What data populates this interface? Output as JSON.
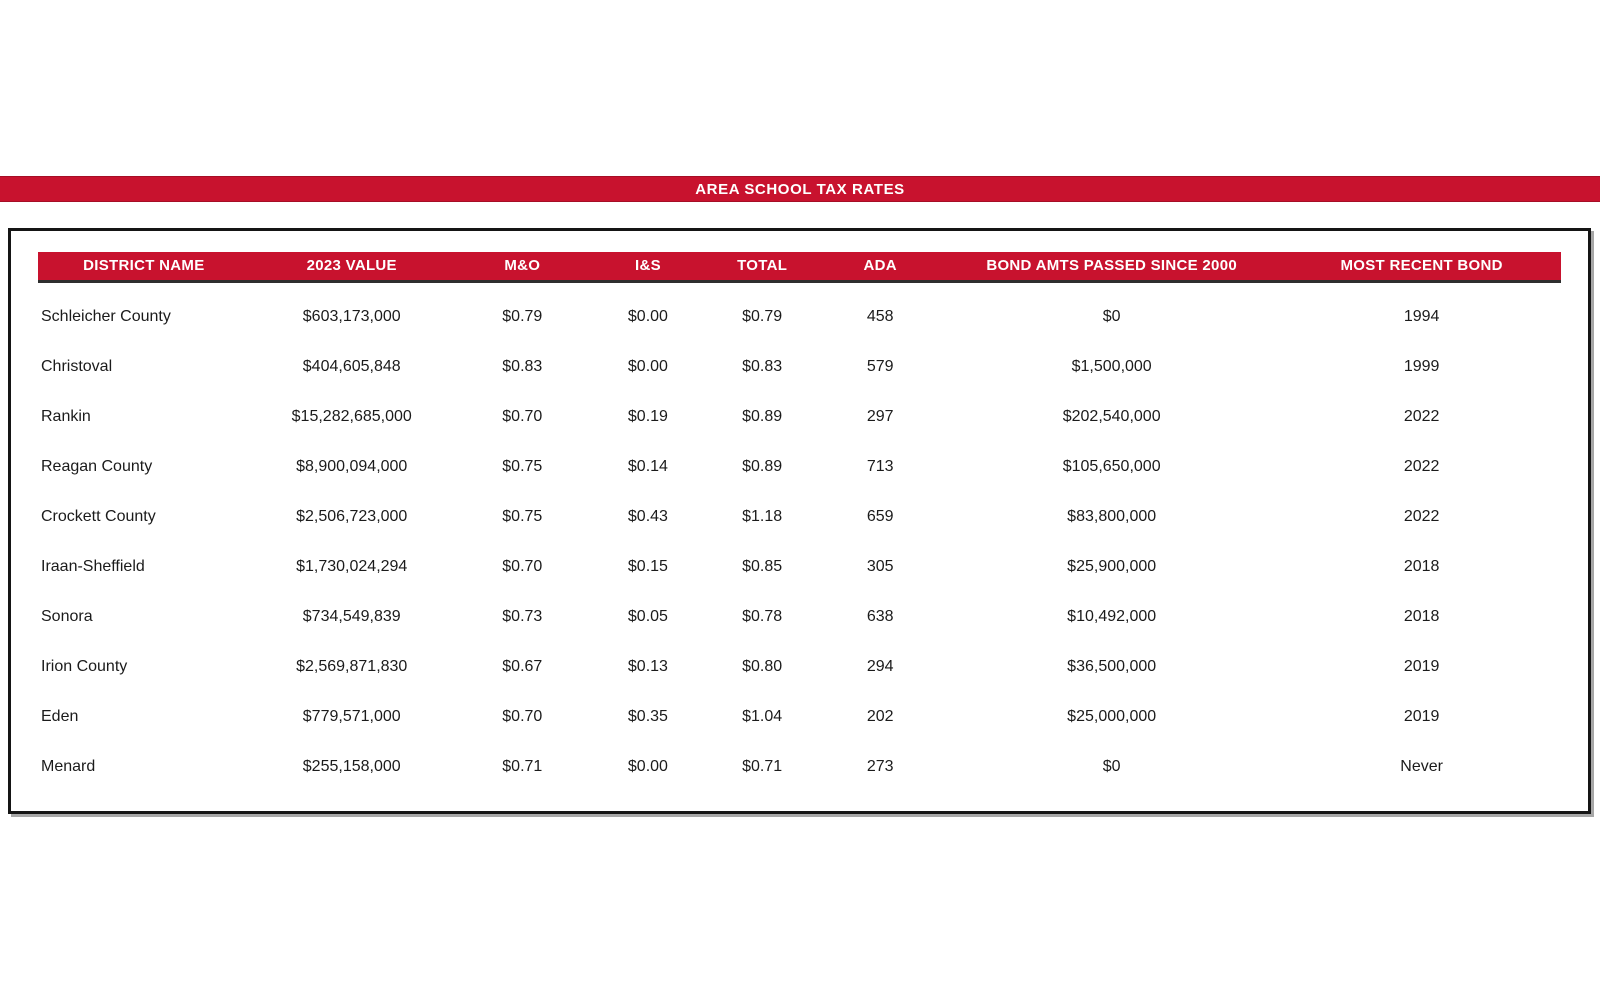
{
  "banner": {
    "title": "AREA SCHOOL TAX RATES"
  },
  "colors": {
    "accent_red": "#C8122E",
    "accent_red_dark": "#A50E26",
    "header_text": "#FFFFFF",
    "body_text": "#1B1B1B",
    "outer_border": "#151515"
  },
  "table": {
    "column_keys": [
      "district-name",
      "value-2023",
      "m-and-o",
      "i-and-s",
      "total",
      "ada",
      "bond-amts-since-2000",
      "most-recent-bond"
    ],
    "columns": [
      "DISTRICT NAME",
      "2023 VALUE",
      "M&O",
      "I&S",
      "TOTAL",
      "ADA",
      "BOND AMTS PASSED SINCE 2000",
      "MOST RECENT BOND"
    ],
    "rows": [
      [
        "Schleicher County",
        "$603,173,000",
        "$0.79",
        "$0.00",
        "$0.79",
        "458",
        "$0",
        "1994"
      ],
      [
        "Christoval",
        "$404,605,848",
        "$0.83",
        "$0.00",
        "$0.83",
        "579",
        "$1,500,000",
        "1999"
      ],
      [
        "Rankin",
        "$15,282,685,000",
        "$0.70",
        "$0.19",
        "$0.89",
        "297",
        "$202,540,000",
        "2022"
      ],
      [
        "Reagan County",
        "$8,900,094,000",
        "$0.75",
        "$0.14",
        "$0.89",
        "713",
        "$105,650,000",
        "2022"
      ],
      [
        "Crockett County",
        "$2,506,723,000",
        "$0.75",
        "$0.43",
        "$1.18",
        "659",
        "$83,800,000",
        "2022"
      ],
      [
        "Iraan-Sheffield",
        "$1,730,024,294",
        "$0.70",
        "$0.15",
        "$0.85",
        "305",
        "$25,900,000",
        "2018"
      ],
      [
        "Sonora",
        "$734,549,839",
        "$0.73",
        "$0.05",
        "$0.78",
        "638",
        "$10,492,000",
        "2018"
      ],
      [
        "Irion County",
        "$2,569,871,830",
        "$0.67",
        "$0.13",
        "$0.80",
        "294",
        "$36,500,000",
        "2019"
      ],
      [
        "Eden",
        "$779,571,000",
        "$0.70",
        "$0.35",
        "$1.04",
        "202",
        "$25,000,000",
        "2019"
      ],
      [
        "Menard",
        "$255,158,000",
        "$0.71",
        "$0.00",
        "$0.71",
        "273",
        "$0",
        "Never"
      ]
    ]
  }
}
